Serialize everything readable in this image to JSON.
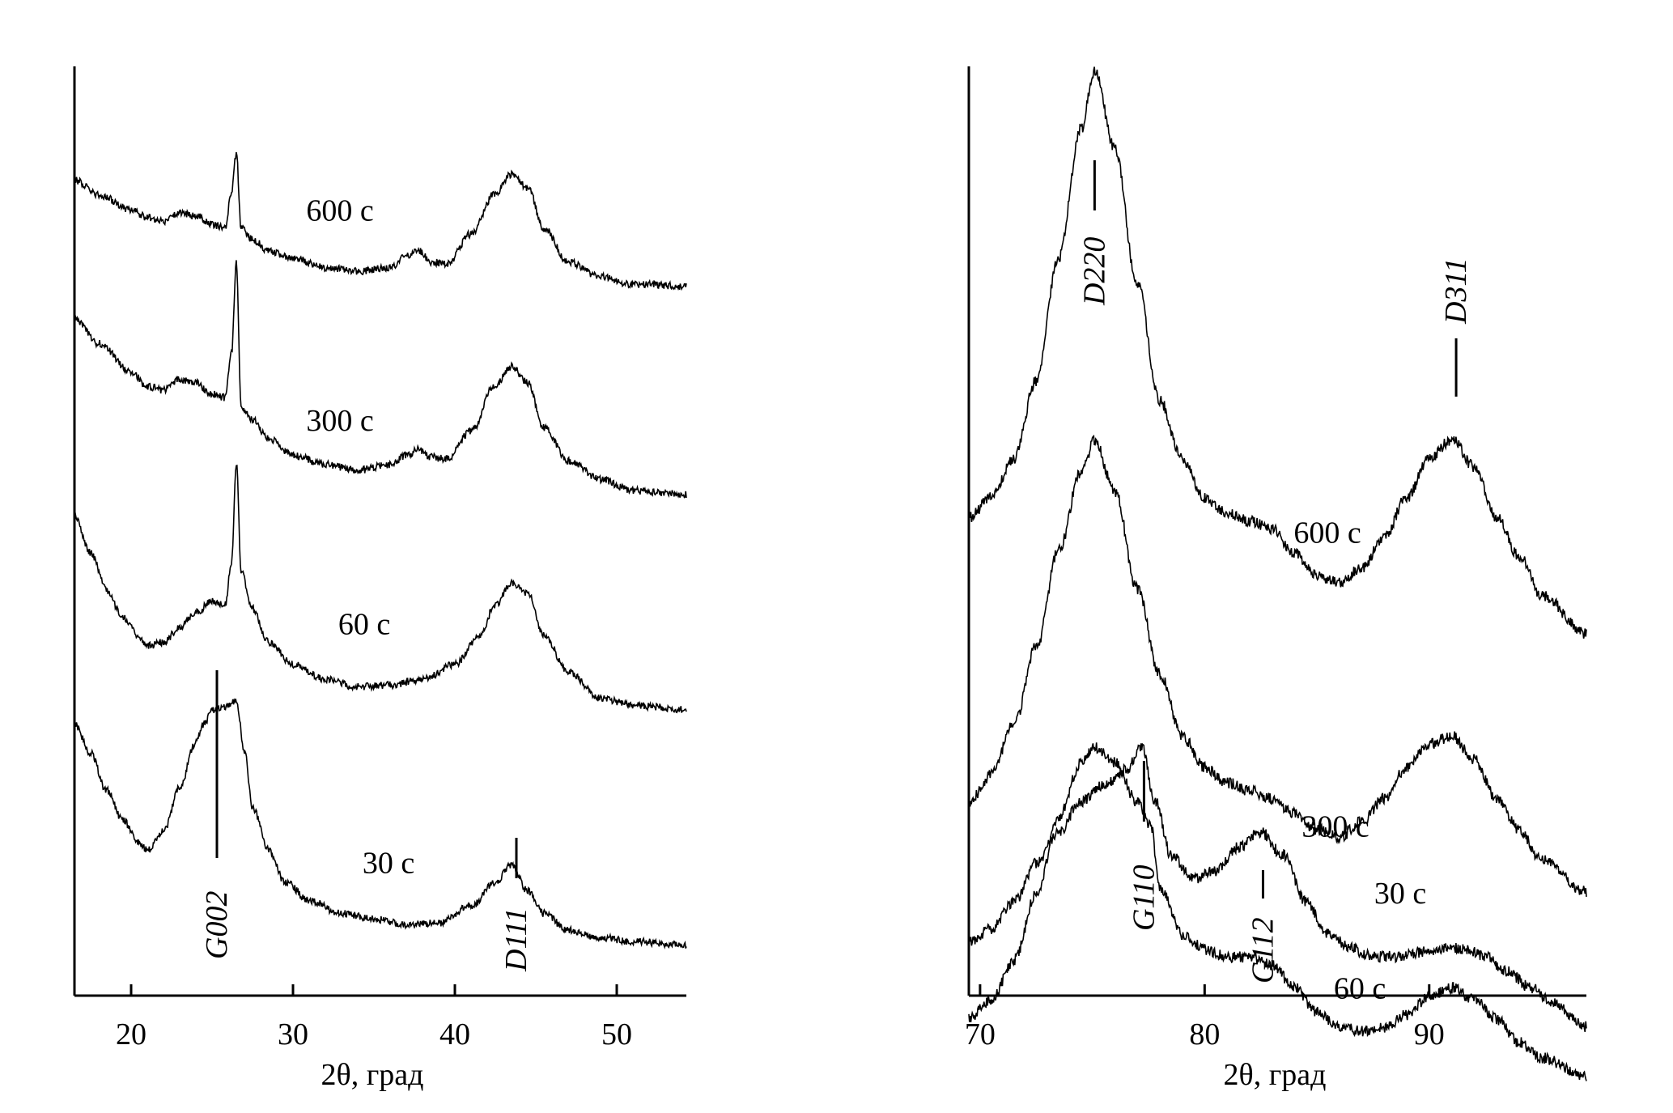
{
  "chart_data": [
    {
      "type": "line",
      "xlabel": "2θ, град",
      "ylabel": "",
      "xlim": [
        16.5,
        54.3
      ],
      "xticks": [
        20,
        30,
        40,
        50
      ],
      "y_axis_ticks": false,
      "grid": false,
      "series": [
        {
          "name": "600 с",
          "x": [
            16.5,
            18,
            20,
            21,
            22,
            23,
            24,
            25,
            25.8,
            26.2,
            26.5,
            26.8,
            27.5,
            28.5,
            30,
            32,
            34,
            36,
            37,
            37.8,
            38.5,
            39.5,
            41,
            42.5,
            43.5,
            44.5,
            45.5,
            47,
            49,
            51,
            54.3
          ],
          "y": [
            0.62,
            0.54,
            0.46,
            0.42,
            0.4,
            0.44,
            0.43,
            0.38,
            0.36,
            0.55,
            0.76,
            0.36,
            0.3,
            0.24,
            0.2,
            0.15,
            0.13,
            0.15,
            0.21,
            0.24,
            0.18,
            0.17,
            0.33,
            0.55,
            0.65,
            0.58,
            0.36,
            0.18,
            0.1,
            0.06,
            0.05
          ]
        },
        {
          "name": "300 с",
          "x": [
            16.5,
            18,
            20,
            21,
            22,
            23,
            24,
            25,
            25.8,
            26.2,
            26.5,
            26.8,
            27.5,
            28.5,
            30,
            32,
            34,
            36,
            37,
            37.8,
            38.5,
            39.5,
            41,
            42.5,
            43.5,
            44.5,
            45.5,
            47,
            49,
            51,
            54.3
          ],
          "y": [
            0.98,
            0.85,
            0.7,
            0.62,
            0.6,
            0.66,
            0.64,
            0.58,
            0.56,
            0.8,
            1.28,
            0.5,
            0.44,
            0.34,
            0.25,
            0.2,
            0.17,
            0.2,
            0.25,
            0.28,
            0.24,
            0.23,
            0.38,
            0.63,
            0.73,
            0.64,
            0.4,
            0.22,
            0.12,
            0.06,
            0.04
          ]
        },
        {
          "name": "60 с",
          "x": [
            16.5,
            17.5,
            18.5,
            19.5,
            20.5,
            21,
            22,
            23,
            24,
            25,
            25.8,
            26.2,
            26.5,
            26.8,
            27.5,
            28.5,
            30,
            32,
            34,
            36,
            38,
            40,
            41.5,
            42.5,
            43.5,
            44.5,
            45.5,
            47,
            49,
            51,
            54.3
          ],
          "y": [
            1.1,
            0.9,
            0.7,
            0.55,
            0.45,
            0.4,
            0.42,
            0.5,
            0.58,
            0.64,
            0.62,
            0.85,
            1.38,
            0.8,
            0.6,
            0.42,
            0.3,
            0.22,
            0.18,
            0.19,
            0.22,
            0.3,
            0.45,
            0.62,
            0.74,
            0.68,
            0.46,
            0.26,
            0.12,
            0.08,
            0.06
          ]
        },
        {
          "name": "30 с",
          "x": [
            16.5,
            17.5,
            18.5,
            19.5,
            20.5,
            21,
            22,
            23,
            24,
            24.5,
            25,
            25.5,
            26,
            26.5,
            27,
            27.5,
            28.5,
            29.5,
            31,
            33,
            35,
            37,
            39,
            41,
            42.5,
            43.5,
            44.5,
            45.5,
            47,
            49,
            51,
            54.3
          ],
          "y": [
            1.2,
            1.04,
            0.84,
            0.68,
            0.56,
            0.52,
            0.62,
            0.86,
            1.1,
            1.2,
            1.27,
            1.28,
            1.3,
            1.32,
            1.05,
            0.75,
            0.52,
            0.35,
            0.25,
            0.18,
            0.15,
            0.12,
            0.13,
            0.22,
            0.35,
            0.44,
            0.3,
            0.18,
            0.09,
            0.05,
            0.03,
            0.01
          ]
        }
      ],
      "peak_labels": [
        {
          "text": "G002",
          "x": 25.3
        },
        {
          "text": "D111",
          "x": 43.8
        }
      ]
    },
    {
      "type": "line",
      "xlabel": "2θ, град",
      "ylabel": "",
      "xlim": [
        69.5,
        97
      ],
      "xticks": [
        70,
        80,
        90
      ],
      "y_axis_ticks": false,
      "grid": false,
      "series": [
        {
          "name": "600 с",
          "x": [
            69.5,
            70.5,
            71.5,
            72.5,
            73.5,
            74.5,
            75.1,
            76,
            77,
            78,
            79,
            80,
            81,
            82,
            83,
            84,
            85,
            86,
            87,
            88,
            89,
            90,
            91,
            92,
            93,
            94,
            95,
            97
          ],
          "y": [
            0.95,
            1.0,
            1.1,
            1.3,
            1.62,
            1.95,
            2.1,
            1.9,
            1.55,
            1.25,
            1.1,
            1.0,
            0.96,
            0.94,
            0.92,
            0.86,
            0.8,
            0.78,
            0.82,
            0.9,
            1.0,
            1.1,
            1.15,
            1.08,
            0.95,
            0.85,
            0.75,
            0.65
          ]
        },
        {
          "name": "300 с",
          "x": [
            69.5,
            70.5,
            71.5,
            72.5,
            73.5,
            74.5,
            75.1,
            76,
            77,
            78,
            79,
            80,
            81,
            82,
            83,
            84,
            85,
            86,
            87,
            88,
            89,
            90,
            91,
            92,
            93,
            94,
            95,
            97
          ],
          "y": [
            0.55,
            0.62,
            0.75,
            0.95,
            1.2,
            1.4,
            1.48,
            1.35,
            1.1,
            0.88,
            0.72,
            0.64,
            0.6,
            0.58,
            0.56,
            0.52,
            0.48,
            0.46,
            0.5,
            0.56,
            0.64,
            0.7,
            0.72,
            0.66,
            0.56,
            0.48,
            0.4,
            0.32
          ]
        },
        {
          "name": "60 с",
          "x": [
            69.5,
            70.5,
            71.5,
            72.5,
            73.5,
            74.5,
            75.1,
            76,
            77,
            77.6,
            78,
            79,
            80,
            81,
            82,
            83,
            84,
            85,
            86,
            87,
            88,
            89,
            90,
            91,
            92,
            93,
            94,
            95,
            97
          ],
          "y": [
            0.2,
            0.25,
            0.35,
            0.52,
            0.72,
            0.86,
            0.9,
            0.86,
            0.76,
            0.7,
            0.54,
            0.42,
            0.38,
            0.36,
            0.36,
            0.34,
            0.28,
            0.22,
            0.18,
            0.17,
            0.18,
            0.21,
            0.26,
            0.28,
            0.25,
            0.2,
            0.14,
            0.1,
            0.05
          ]
        },
        {
          "name": "30 с",
          "x": [
            69.5,
            70.5,
            71.5,
            72.5,
            73.5,
            74.5,
            75.5,
            76.5,
            77.2,
            77.8,
            78.5,
            79.5,
            80.5,
            81.5,
            82.5,
            83.5,
            84.5,
            85.5,
            86.5,
            87.5,
            88.5,
            89.5,
            90.5,
            91.5,
            92.5,
            93.5,
            94.5,
            95.5,
            97
          ],
          "y": [
            0.12,
            0.15,
            0.22,
            0.32,
            0.4,
            0.48,
            0.52,
            0.56,
            0.62,
            0.48,
            0.34,
            0.28,
            0.3,
            0.36,
            0.4,
            0.34,
            0.22,
            0.14,
            0.1,
            0.08,
            0.08,
            0.09,
            0.1,
            0.1,
            0.08,
            0.04,
            0.0,
            -0.04,
            -0.1
          ]
        }
      ],
      "peak_labels": [
        {
          "text": "D220",
          "x": 75.1
        },
        {
          "text": "D311",
          "x": 91.2
        },
        {
          "text": "G110",
          "x": 77.3
        },
        {
          "text": "G112",
          "x": 82.6
        }
      ]
    }
  ]
}
